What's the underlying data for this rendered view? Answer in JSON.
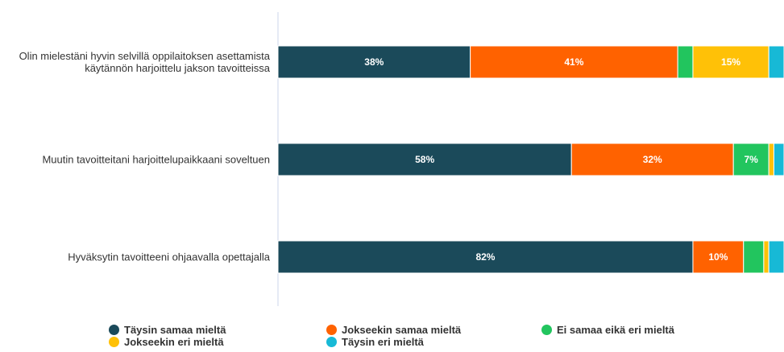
{
  "chart_data": {
    "type": "bar",
    "orientation": "horizontal",
    "stacked": true,
    "categories": [
      "Olin mielestäni hyvin selvillä oppilaitoksen asettamista käytännön harjoittelu jakson tavoitteissa",
      "Muutin tavoitteitani harjoittelupaikkaani soveltuen",
      "Hyväksytin tavoitteeni ohjaavalla opettajalla"
    ],
    "xlim": [
      0,
      100
    ],
    "series": [
      {
        "name": "Täysin samaa mieltä",
        "color": "#1b4a5a",
        "values": [
          38,
          58,
          82
        ],
        "value_labels": [
          "38%",
          "58%",
          "82%"
        ]
      },
      {
        "name": "Jokseekin samaa mieltä",
        "color": "#ff6200",
        "values": [
          41,
          32,
          10
        ],
        "value_labels": [
          "41%",
          "32%",
          "10%"
        ]
      },
      {
        "name": "Ei samaa eikä eri mieltä",
        "color": "#22c55e",
        "values": [
          3,
          7,
          4
        ],
        "value_labels": [
          null,
          "7%",
          null
        ]
      },
      {
        "name": "Jokseekin eri mieltä",
        "color": "#ffc107",
        "values": [
          15,
          1,
          1
        ],
        "value_labels": [
          "15%",
          null,
          null
        ]
      },
      {
        "name": "Täysin eri mieltä",
        "color": "#17b9d6",
        "values": [
          3,
          2,
          3
        ],
        "value_labels": [
          null,
          null,
          null
        ]
      }
    ],
    "legend": "bottom"
  }
}
